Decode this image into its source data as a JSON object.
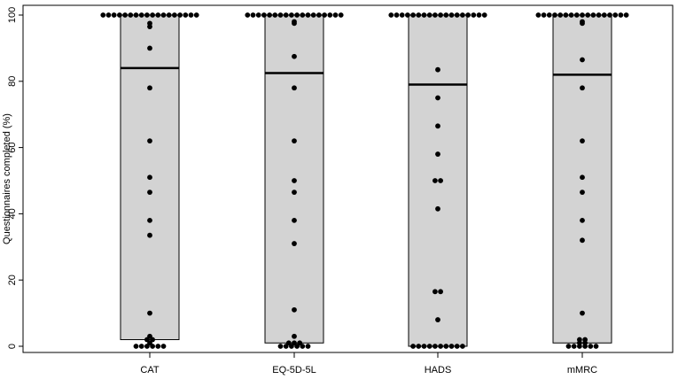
{
  "chart_data": {
    "type": "box",
    "title": "",
    "xlabel": "",
    "ylabel": "Questionnaires completed (%)",
    "ylim": [
      0,
      100
    ],
    "yticks": [
      0,
      20,
      40,
      60,
      80,
      100
    ],
    "yticks_labels": [
      "0",
      "20",
      "40",
      "60",
      "80",
      "100"
    ],
    "grid": false,
    "colors": {
      "box_fill": "#d3d3d3",
      "point": "#000000",
      "axis": "#000000"
    },
    "categories": [
      "CAT",
      "EQ-5D-5L",
      "HADS",
      "mMRC"
    ],
    "series": [
      {
        "box": {
          "q1": 2,
          "median": 84,
          "q3": 100
        },
        "points": [
          100,
          100,
          100,
          100,
          100,
          100,
          100,
          100,
          100,
          100,
          100,
          100,
          100,
          100,
          100,
          100,
          100,
          100,
          97.5,
          96.5,
          90,
          78,
          62,
          51,
          46.5,
          38,
          33.5,
          10,
          3,
          2,
          2,
          1,
          0,
          0,
          0,
          0,
          0,
          0
        ]
      },
      {
        "box": {
          "q1": 1,
          "median": 82.5,
          "q3": 100
        },
        "points": [
          100,
          100,
          100,
          100,
          100,
          100,
          100,
          100,
          100,
          100,
          100,
          100,
          100,
          100,
          100,
          100,
          100,
          100,
          98,
          97.5,
          87.5,
          78,
          62,
          50,
          46.5,
          38,
          31,
          11,
          3,
          1,
          1,
          1,
          0,
          0,
          0,
          0,
          0,
          0
        ]
      },
      {
        "box": {
          "q1": 0,
          "median": 79,
          "q3": 100
        },
        "points": [
          100,
          100,
          100,
          100,
          100,
          100,
          100,
          100,
          100,
          100,
          100,
          100,
          100,
          100,
          100,
          100,
          100,
          100,
          83.5,
          75,
          66.5,
          58,
          50,
          50,
          41.5,
          16.5,
          16.5,
          8,
          0,
          0,
          0,
          0,
          0,
          0,
          0,
          0,
          0,
          0
        ]
      },
      {
        "box": {
          "q1": 1,
          "median": 82,
          "q3": 100
        },
        "points": [
          100,
          100,
          100,
          100,
          100,
          100,
          100,
          100,
          100,
          100,
          100,
          100,
          100,
          100,
          100,
          100,
          100,
          98,
          97.5,
          86.5,
          78,
          62,
          51,
          46.5,
          38,
          32,
          10,
          2,
          2,
          1,
          1,
          0,
          0,
          0,
          0,
          0,
          0
        ]
      }
    ]
  }
}
